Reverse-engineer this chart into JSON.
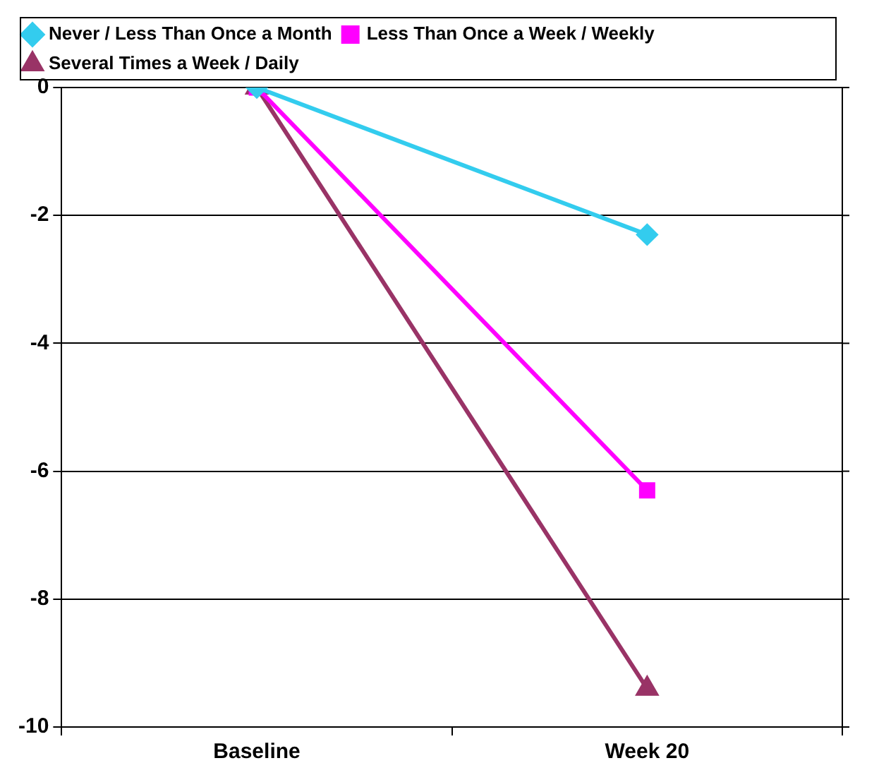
{
  "chart_data": {
    "type": "line",
    "categories": [
      "Baseline",
      "Week 20"
    ],
    "series": [
      {
        "name": "Never / Less Than Once a Month",
        "color": "#33ccee",
        "marker": "diamond",
        "values": [
          0,
          -2.3
        ]
      },
      {
        "name": "Less Than Once a Week / Weekly",
        "color": "#ff00ff",
        "marker": "square",
        "values": [
          0,
          -6.3
        ]
      },
      {
        "name": "Several Times a Week / Daily",
        "color": "#993366",
        "marker": "triangle",
        "values": [
          0,
          -9.4
        ]
      }
    ],
    "ylim": [
      -10,
      0
    ],
    "yticks": [
      -10,
      -8,
      -6,
      -4,
      -2,
      0
    ],
    "grid": "y",
    "legend": "top",
    "line_style": "solid"
  }
}
